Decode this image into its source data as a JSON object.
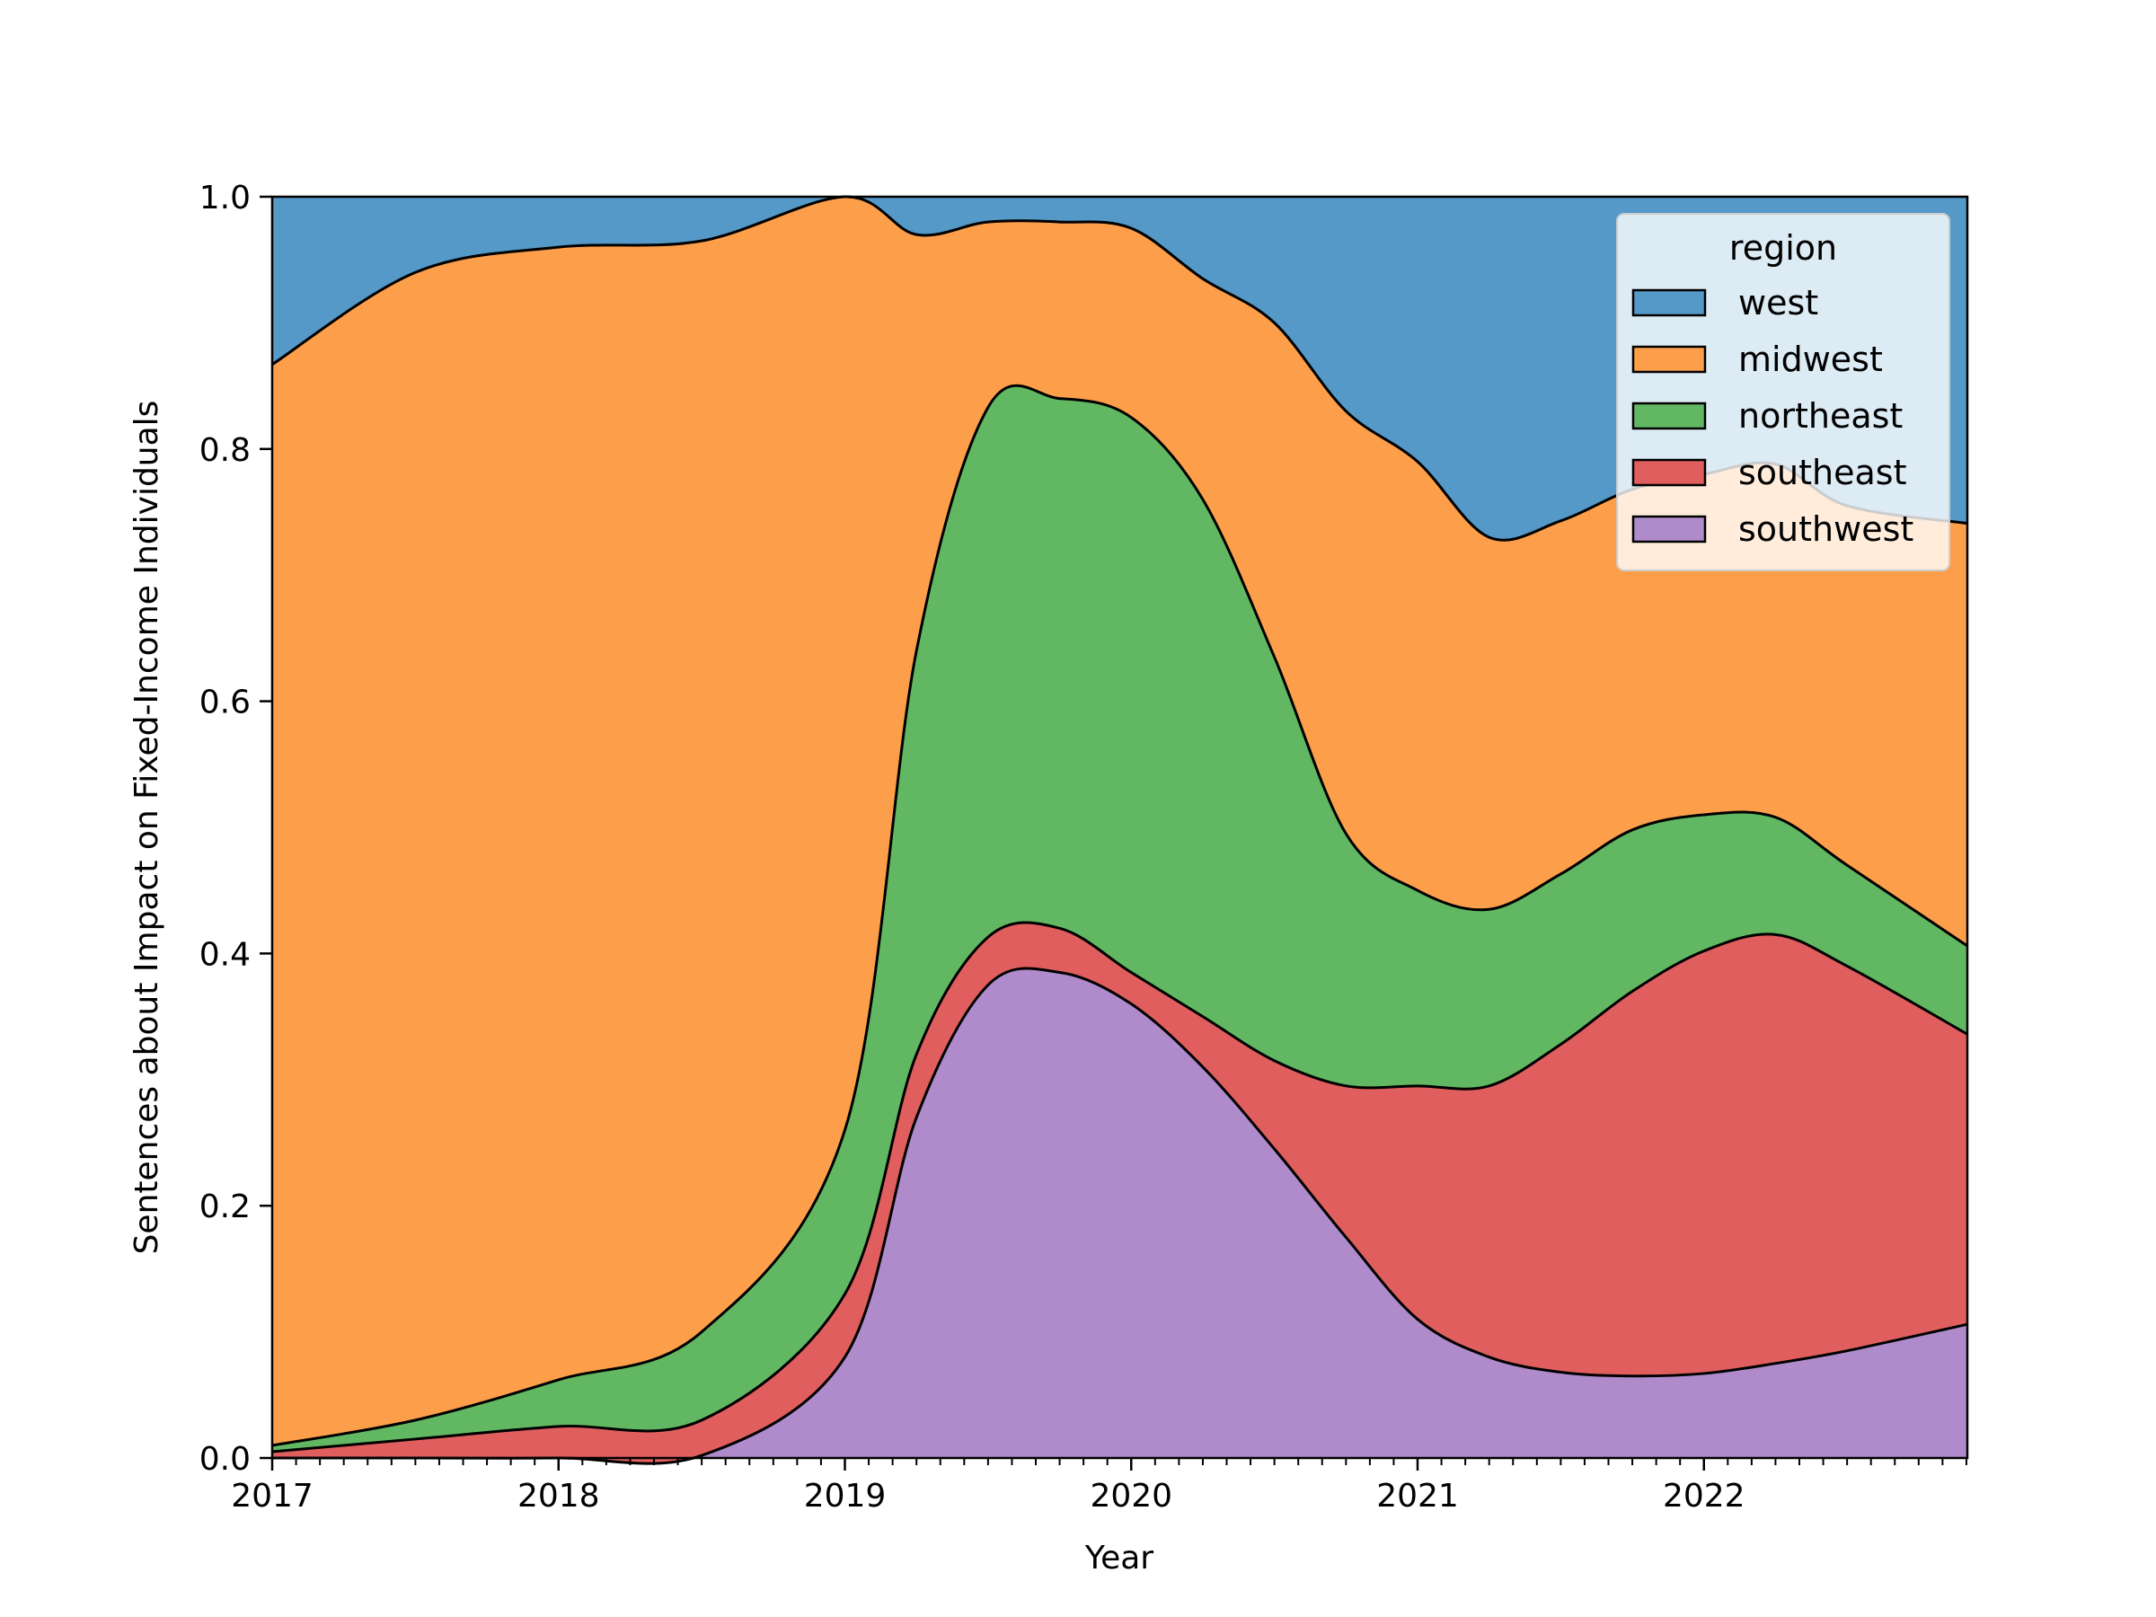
{
  "chart_data": {
    "type": "area",
    "stacked": true,
    "normalized": true,
    "title": "",
    "xlabel": "Year",
    "ylabel": "Sentences about Impact on Fixed-Income Individuals",
    "xlim": [
      2017.0,
      2022.92
    ],
    "ylim": [
      0.0,
      1.0
    ],
    "x_ticks": [
      2017,
      2018,
      2019,
      2020,
      2021,
      2022
    ],
    "x_tick_labels": [
      "2017",
      "2018",
      "2019",
      "2020",
      "2021",
      "2022"
    ],
    "y_ticks": [
      0.0,
      0.2,
      0.4,
      0.6,
      0.8,
      1.0
    ],
    "y_tick_labels": [
      "0.0",
      "0.2",
      "0.4",
      "0.6",
      "0.8",
      "1.0"
    ],
    "grid": false,
    "legend": {
      "title": "region",
      "position": "top-right"
    },
    "x": [
      2017.0,
      2017.5,
      2018.0,
      2018.5,
      2019.0,
      2019.25,
      2019.5,
      2019.75,
      2020.0,
      2020.25,
      2020.5,
      2020.75,
      2021.0,
      2021.25,
      2021.5,
      2021.75,
      2022.0,
      2022.25,
      2022.5,
      2022.92
    ],
    "series": [
      {
        "name": "southwest",
        "color": "#af8bcb",
        "values": [
          0.0,
          0.0,
          0.0,
          0.002,
          0.08,
          0.27,
          0.375,
          0.385,
          0.36,
          0.31,
          0.245,
          0.175,
          0.11,
          0.08,
          0.068,
          0.065,
          0.067,
          0.075,
          0.085,
          0.106
        ]
      },
      {
        "name": "southeast",
        "color": "#e05e5e",
        "values": [
          0.005,
          0.015,
          0.025,
          0.028,
          0.05,
          0.05,
          0.038,
          0.035,
          0.025,
          0.04,
          0.07,
          0.12,
          0.185,
          0.215,
          0.26,
          0.305,
          0.335,
          0.34,
          0.305,
          0.23
        ]
      },
      {
        "name": "northeast",
        "color": "#62b862",
        "values": [
          0.005,
          0.015,
          0.037,
          0.07,
          0.13,
          0.32,
          0.42,
          0.42,
          0.44,
          0.41,
          0.32,
          0.2,
          0.155,
          0.14,
          0.135,
          0.128,
          0.108,
          0.093,
          0.08,
          0.07
        ]
      },
      {
        "name": "midwest",
        "color": "#fd9f4a",
        "values": [
          0.857,
          0.91,
          0.898,
          0.865,
          0.755,
          0.33,
          0.147,
          0.14,
          0.15,
          0.175,
          0.265,
          0.335,
          0.34,
          0.295,
          0.28,
          0.27,
          0.27,
          0.28,
          0.285,
          0.335
        ]
      },
      {
        "name": "west",
        "color": "#5499c7",
        "values": [
          0.133,
          0.06,
          0.04,
          0.035,
          0.035,
          0.03,
          0.02,
          0.02,
          0.025,
          0.065,
          0.1,
          0.17,
          0.21,
          0.27,
          0.257,
          0.232,
          0.22,
          0.212,
          0.245,
          0.259
        ]
      }
    ],
    "legend_order": [
      "west",
      "midwest",
      "northeast",
      "southeast",
      "southwest"
    ]
  }
}
